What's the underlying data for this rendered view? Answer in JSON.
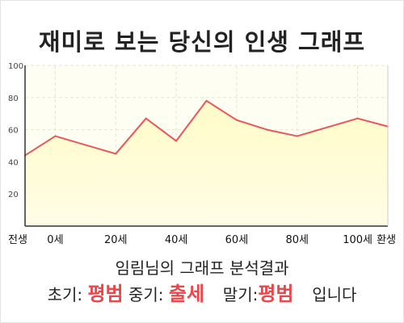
{
  "title": "재미로 보는 당신의 인생 그래프",
  "subtitle": "임림님의 그래프 분석결과",
  "result": {
    "early_label": "초기:",
    "early_value": "평범",
    "mid_label": "중기:",
    "mid_value": "출세",
    "late_label": "말기:",
    "late_value": "평범",
    "suffix": "입니다"
  },
  "colors": {
    "line": "#e8575a",
    "fill": "#fffbc8",
    "fill_bottom": "#fffde6",
    "grid": "#e6e6d0",
    "axis": "#333333",
    "highlight": "#e8474b"
  },
  "chart_data": {
    "type": "area",
    "ylim": [
      0,
      100
    ],
    "yticks": [
      20,
      40,
      60,
      80,
      100
    ],
    "xticks": [
      {
        "label": "전생",
        "x": -10
      },
      {
        "label": "0세",
        "x": 0
      },
      {
        "label": "20세",
        "x": 20
      },
      {
        "label": "40세",
        "x": 40
      },
      {
        "label": "60세",
        "x": 60
      },
      {
        "label": "80세",
        "x": 80
      },
      {
        "label": "100세",
        "x": 100
      },
      {
        "label": "환생",
        "x": 110
      }
    ],
    "x": [
      -10,
      0,
      20,
      30,
      40,
      50,
      60,
      70,
      80,
      100,
      110
    ],
    "values": [
      44,
      56,
      45,
      67,
      53,
      78,
      66,
      60,
      56,
      67,
      62
    ],
    "grid": true,
    "title": "",
    "xlabel": "",
    "ylabel": ""
  }
}
